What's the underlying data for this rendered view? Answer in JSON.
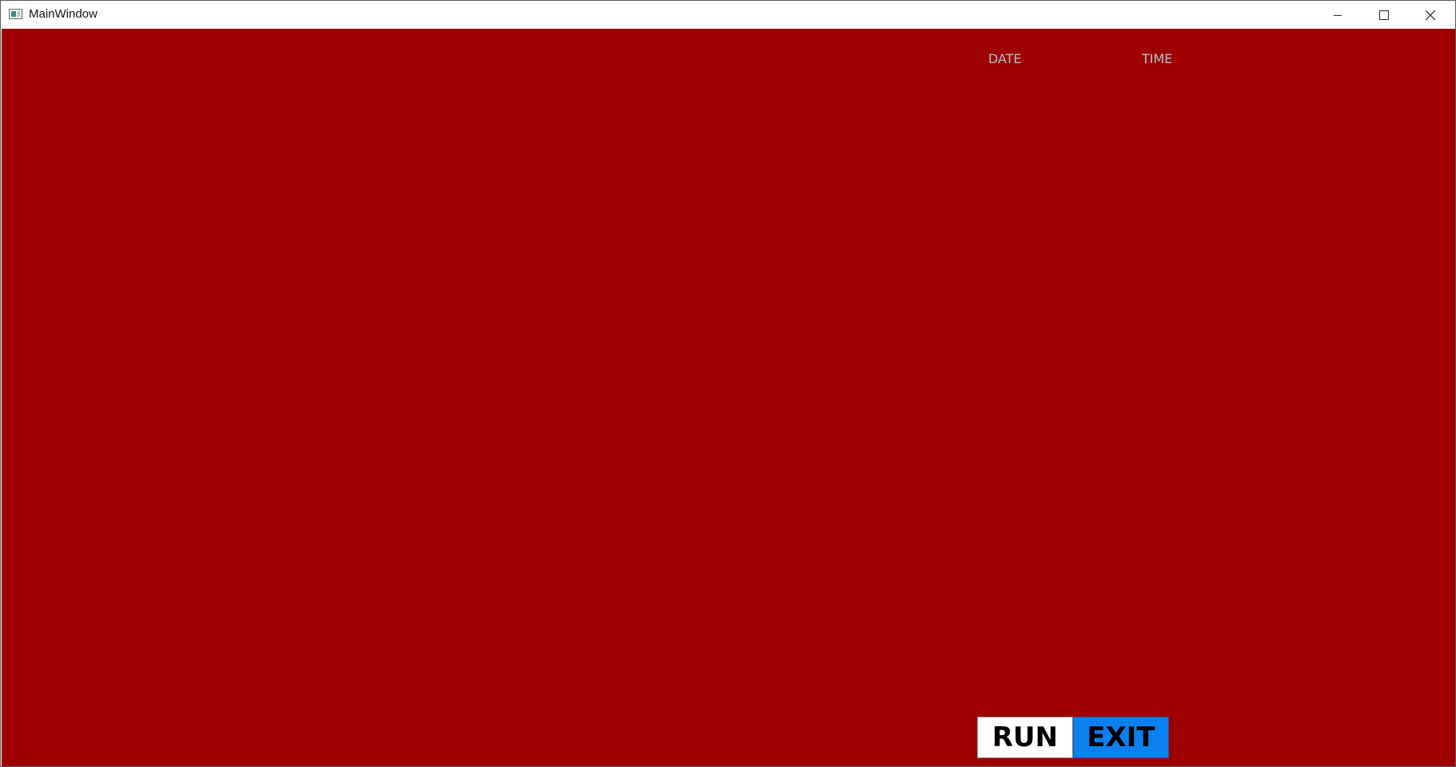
{
  "window": {
    "title": "MainWindow",
    "controls": {
      "minimize_icon": "minimize-icon",
      "maximize_icon": "maximize-icon",
      "close_icon": "close-icon"
    }
  },
  "main": {
    "background_color": "#9e0000",
    "date_label": "DATE",
    "time_label": "TIME",
    "run_button": "RUN",
    "exit_button": "EXIT",
    "run_button_color": "#ffffff",
    "exit_button_color": "#0a7ff0"
  }
}
